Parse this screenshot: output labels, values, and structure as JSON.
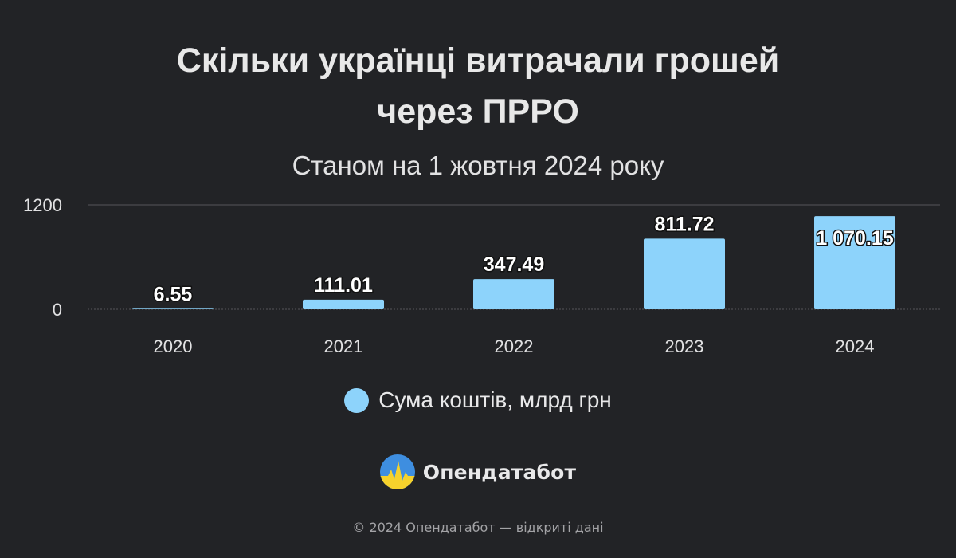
{
  "chart_data": {
    "type": "bar",
    "title_lines": [
      "Скільки українці витрачали грошей",
      "через ПРРО"
    ],
    "subtitle": "Станом на 1 жовтня 2024 року",
    "categories": [
      "2020",
      "2021",
      "2022",
      "2023",
      "2024"
    ],
    "series": [
      {
        "name": "Сума коштів, млрд грн",
        "values": [
          6.55,
          111.01,
          347.49,
          811.72,
          1070.15
        ],
        "data_labels": [
          "6.55",
          "111.01",
          "347.49",
          "811.72",
          "1 070.15"
        ],
        "color": "#8dd3fb"
      }
    ],
    "y_ticks": [
      0,
      1200
    ],
    "ylim": [
      0,
      1200
    ],
    "grid": true,
    "legend_position": "bottom-center"
  },
  "brand": {
    "name": "Опендатабот"
  },
  "footer": "© 2024 Опендатабот — відкриті дані",
  "colors": {
    "background": "#222326",
    "bar": "#8dd3fb",
    "grid": "#55565a",
    "logo_blue": "#3e8ee0",
    "logo_yellow": "#f6d22c"
  }
}
